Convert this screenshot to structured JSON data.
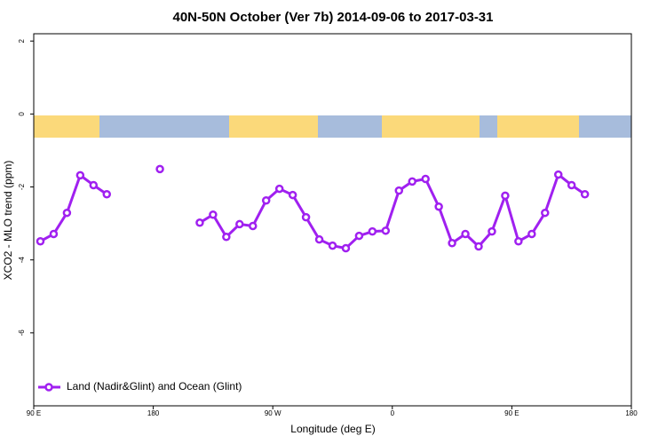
{
  "chart_data": {
    "type": "line",
    "title": "40N-50N October (Ver 7b)   2014-09-06 to 2017-03-31",
    "xlabel": "Longitude (deg E)",
    "ylabel": "XCO2 - MLO trend (ppm)",
    "x": [
      95,
      105,
      115,
      125,
      135,
      145,
      155,
      165,
      175,
      185,
      195,
      205,
      215,
      225,
      235,
      245,
      255,
      265,
      275,
      285,
      295,
      305,
      315,
      325,
      335,
      345,
      355,
      365,
      375,
      385,
      395,
      405,
      415,
      425,
      435,
      445,
      455,
      465,
      475,
      485,
      495,
      505
    ],
    "series": [
      {
        "name": "Land (Nadir&Glint) and Ocean (Glint)",
        "color": "#a020f0",
        "values": [
          -3.49,
          -3.29,
          -2.71,
          -1.68,
          -1.95,
          -2.2,
          null,
          null,
          null,
          -1.51,
          null,
          null,
          -2.98,
          -2.76,
          -3.37,
          -3.02,
          -3.07,
          -2.37,
          -2.05,
          -2.22,
          -2.83,
          -3.44,
          -3.61,
          -3.68,
          -3.34,
          -3.22,
          -3.2,
          -2.1,
          -1.85,
          -1.78,
          -2.54,
          -3.54,
          -3.29,
          -3.63,
          -3.22,
          -2.24,
          -3.49,
          -3.29,
          -2.71,
          -1.66,
          -1.95,
          -2.2
        ]
      }
    ],
    "xlim": [
      90,
      540
    ],
    "xticks": [
      {
        "value": 90,
        "label": "90 E"
      },
      {
        "value": 180,
        "label": "180"
      },
      {
        "value": 270,
        "label": "90 W"
      },
      {
        "value": 360,
        "label": "0"
      },
      {
        "value": 450,
        "label": "90 E"
      },
      {
        "value": 540,
        "label": "180"
      }
    ],
    "ylim": [
      -8,
      2.2
    ],
    "yticks": [
      2,
      0,
      -2,
      -4,
      -6
    ],
    "legend": "bottom-left"
  }
}
